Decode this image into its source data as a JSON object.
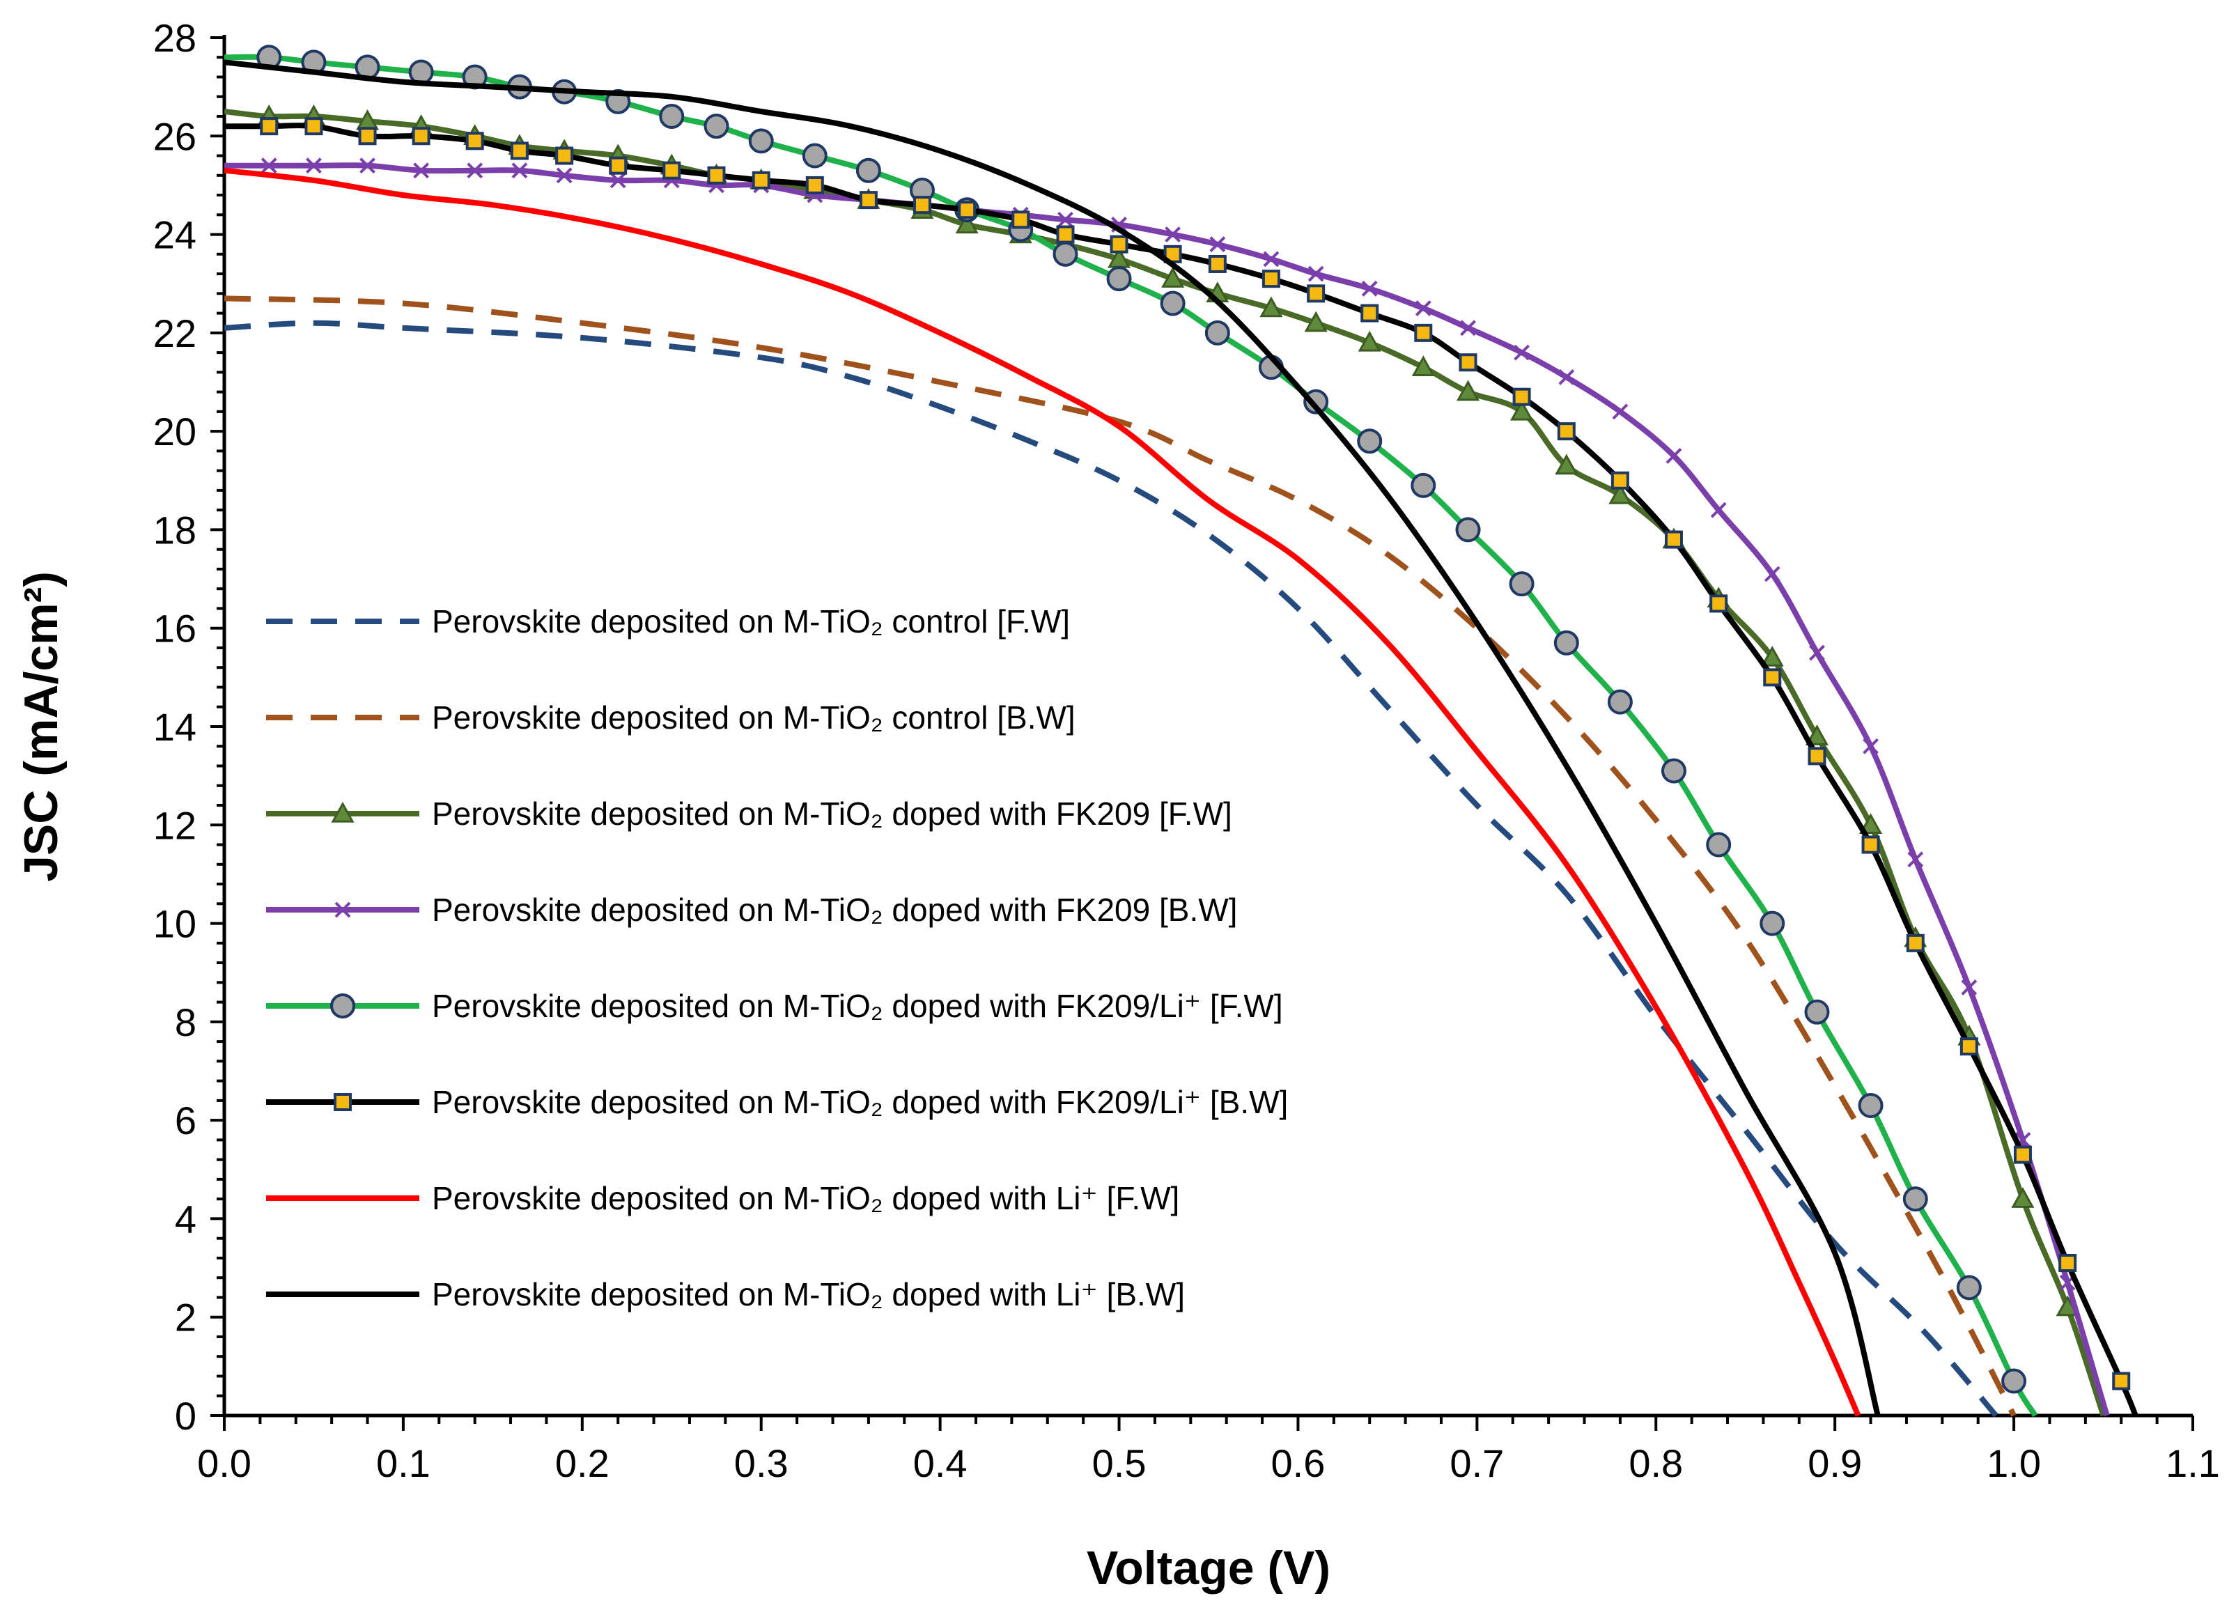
{
  "chart_data": {
    "type": "line",
    "title": "",
    "xlabel": "Voltage (V)",
    "ylabel": "JSC (mA/cm²)",
    "xlim": [
      0,
      1.1
    ],
    "ylim": [
      0,
      28
    ],
    "x_ticks": [
      0.0,
      0.1,
      0.2,
      0.3,
      0.4,
      0.5,
      0.6,
      0.7,
      0.8,
      0.9,
      1.0,
      1.1
    ],
    "x_tick_labels": [
      "0.0",
      "0.1",
      "0.2",
      "0.3",
      "0.4",
      "0.5",
      "0.6",
      "0.7",
      "0.8",
      "0.9",
      "1.0",
      "1.1"
    ],
    "y_ticks": [
      0,
      2,
      4,
      6,
      8,
      10,
      12,
      14,
      16,
      18,
      20,
      22,
      24,
      26,
      28
    ],
    "y_tick_labels": [
      "0",
      "2",
      "4",
      "6",
      "8",
      "10",
      "12",
      "14",
      "16",
      "18",
      "20",
      "22",
      "24",
      "26",
      "28"
    ],
    "grid": false,
    "legend_position": "left-center",
    "series": [
      {
        "name": "Perovskite deposited on M-TiO₂ control [F.W]",
        "color": "#254b7e",
        "dash": "dashed",
        "marker": "none",
        "points": [
          [
            0.0,
            22.1
          ],
          [
            0.05,
            22.2
          ],
          [
            0.1,
            22.1
          ],
          [
            0.2,
            21.9
          ],
          [
            0.3,
            21.5
          ],
          [
            0.35,
            21.1
          ],
          [
            0.4,
            20.5
          ],
          [
            0.45,
            19.8
          ],
          [
            0.5,
            19.0
          ],
          [
            0.55,
            17.9
          ],
          [
            0.6,
            16.4
          ],
          [
            0.65,
            14.4
          ],
          [
            0.7,
            12.4
          ],
          [
            0.75,
            10.6
          ],
          [
            0.8,
            8.1
          ],
          [
            0.85,
            5.8
          ],
          [
            0.9,
            3.5
          ],
          [
            0.95,
            1.7
          ],
          [
            0.99,
            0.0
          ]
        ]
      },
      {
        "name": "Perovskite deposited on M-TiO₂ control [B.W]",
        "color": "#a0521d",
        "dash": "dashed",
        "marker": "none",
        "points": [
          [
            0.0,
            22.7
          ],
          [
            0.1,
            22.6
          ],
          [
            0.2,
            22.2
          ],
          [
            0.3,
            21.7
          ],
          [
            0.4,
            21.0
          ],
          [
            0.5,
            20.2
          ],
          [
            0.55,
            19.4
          ],
          [
            0.6,
            18.6
          ],
          [
            0.65,
            17.5
          ],
          [
            0.7,
            16.0
          ],
          [
            0.75,
            14.2
          ],
          [
            0.8,
            12.1
          ],
          [
            0.85,
            9.7
          ],
          [
            0.9,
            6.7
          ],
          [
            0.95,
            3.5
          ],
          [
            0.975,
            1.8
          ],
          [
            1.0,
            0.0
          ]
        ]
      },
      {
        "name": "Perovskite deposited on M-TiO₂ doped with FK209 [F.W]",
        "color": "#4a6b28",
        "dash": "solid",
        "marker": "triangle",
        "points": [
          [
            0.0,
            26.5
          ],
          [
            0.025,
            26.4
          ],
          [
            0.05,
            26.4
          ],
          [
            0.08,
            26.3
          ],
          [
            0.11,
            26.2
          ],
          [
            0.14,
            26.0
          ],
          [
            0.165,
            25.8
          ],
          [
            0.19,
            25.7
          ],
          [
            0.22,
            25.6
          ],
          [
            0.25,
            25.4
          ],
          [
            0.275,
            25.2
          ],
          [
            0.3,
            25.1
          ],
          [
            0.33,
            24.9
          ],
          [
            0.36,
            24.7
          ],
          [
            0.39,
            24.5
          ],
          [
            0.415,
            24.2
          ],
          [
            0.445,
            24.0
          ],
          [
            0.47,
            23.8
          ],
          [
            0.5,
            23.5
          ],
          [
            0.53,
            23.1
          ],
          [
            0.555,
            22.8
          ],
          [
            0.585,
            22.5
          ],
          [
            0.61,
            22.2
          ],
          [
            0.64,
            21.8
          ],
          [
            0.67,
            21.3
          ],
          [
            0.695,
            20.8
          ],
          [
            0.725,
            20.4
          ],
          [
            0.75,
            19.3
          ],
          [
            0.78,
            18.7
          ],
          [
            0.81,
            17.8
          ],
          [
            0.835,
            16.6
          ],
          [
            0.865,
            15.4
          ],
          [
            0.89,
            13.8
          ],
          [
            0.92,
            12.0
          ],
          [
            0.945,
            9.7
          ],
          [
            0.975,
            7.7
          ],
          [
            1.005,
            4.4
          ],
          [
            1.03,
            2.2
          ],
          [
            1.05,
            0.0
          ]
        ]
      },
      {
        "name": "Perovskite deposited on M-TiO₂ doped with FK209 [B.W]",
        "color": "#7b3fab",
        "dash": "solid",
        "marker": "x",
        "points": [
          [
            0.0,
            25.4
          ],
          [
            0.025,
            25.4
          ],
          [
            0.05,
            25.4
          ],
          [
            0.08,
            25.4
          ],
          [
            0.11,
            25.3
          ],
          [
            0.14,
            25.3
          ],
          [
            0.165,
            25.3
          ],
          [
            0.19,
            25.2
          ],
          [
            0.22,
            25.1
          ],
          [
            0.25,
            25.1
          ],
          [
            0.275,
            25.0
          ],
          [
            0.3,
            25.0
          ],
          [
            0.33,
            24.8
          ],
          [
            0.36,
            24.7
          ],
          [
            0.39,
            24.6
          ],
          [
            0.415,
            24.5
          ],
          [
            0.445,
            24.4
          ],
          [
            0.47,
            24.3
          ],
          [
            0.5,
            24.2
          ],
          [
            0.53,
            24.0
          ],
          [
            0.555,
            23.8
          ],
          [
            0.585,
            23.5
          ],
          [
            0.61,
            23.2
          ],
          [
            0.64,
            22.9
          ],
          [
            0.67,
            22.5
          ],
          [
            0.695,
            22.1
          ],
          [
            0.725,
            21.6
          ],
          [
            0.75,
            21.1
          ],
          [
            0.78,
            20.4
          ],
          [
            0.81,
            19.5
          ],
          [
            0.835,
            18.4
          ],
          [
            0.865,
            17.1
          ],
          [
            0.89,
            15.5
          ],
          [
            0.92,
            13.6
          ],
          [
            0.945,
            11.3
          ],
          [
            0.975,
            8.7
          ],
          [
            1.005,
            5.6
          ],
          [
            1.03,
            2.7
          ],
          [
            1.052,
            0.0
          ]
        ]
      },
      {
        "name": "Perovskite deposited on M-TiO₂ doped with FK209/Li⁺ [F.W]",
        "color": "#1fb24a",
        "dash": "solid",
        "marker": "circle",
        "points": [
          [
            0.0,
            27.6
          ],
          [
            0.025,
            27.6
          ],
          [
            0.05,
            27.5
          ],
          [
            0.08,
            27.4
          ],
          [
            0.11,
            27.3
          ],
          [
            0.14,
            27.2
          ],
          [
            0.165,
            27.0
          ],
          [
            0.19,
            26.9
          ],
          [
            0.22,
            26.7
          ],
          [
            0.25,
            26.4
          ],
          [
            0.275,
            26.2
          ],
          [
            0.3,
            25.9
          ],
          [
            0.33,
            25.6
          ],
          [
            0.36,
            25.3
          ],
          [
            0.39,
            24.9
          ],
          [
            0.415,
            24.5
          ],
          [
            0.445,
            24.1
          ],
          [
            0.47,
            23.6
          ],
          [
            0.5,
            23.1
          ],
          [
            0.53,
            22.6
          ],
          [
            0.555,
            22.0
          ],
          [
            0.585,
            21.3
          ],
          [
            0.61,
            20.6
          ],
          [
            0.64,
            19.8
          ],
          [
            0.67,
            18.9
          ],
          [
            0.695,
            18.0
          ],
          [
            0.725,
            16.9
          ],
          [
            0.75,
            15.7
          ],
          [
            0.78,
            14.5
          ],
          [
            0.81,
            13.1
          ],
          [
            0.835,
            11.6
          ],
          [
            0.865,
            10.0
          ],
          [
            0.89,
            8.2
          ],
          [
            0.92,
            6.3
          ],
          [
            0.945,
            4.4
          ],
          [
            0.975,
            2.6
          ],
          [
            1.0,
            0.7
          ],
          [
            1.012,
            0.0
          ]
        ]
      },
      {
        "name": "Perovskite deposited on M-TiO₂ doped with FK209/Li⁺ [B.W]",
        "color": "#000000",
        "dash": "solid",
        "marker": "square",
        "points": [
          [
            0.0,
            26.2
          ],
          [
            0.025,
            26.2
          ],
          [
            0.05,
            26.2
          ],
          [
            0.08,
            26.0
          ],
          [
            0.11,
            26.0
          ],
          [
            0.14,
            25.9
          ],
          [
            0.165,
            25.7
          ],
          [
            0.19,
            25.6
          ],
          [
            0.22,
            25.4
          ],
          [
            0.25,
            25.3
          ],
          [
            0.275,
            25.2
          ],
          [
            0.3,
            25.1
          ],
          [
            0.33,
            25.0
          ],
          [
            0.36,
            24.7
          ],
          [
            0.39,
            24.6
          ],
          [
            0.415,
            24.5
          ],
          [
            0.445,
            24.3
          ],
          [
            0.47,
            24.0
          ],
          [
            0.5,
            23.8
          ],
          [
            0.53,
            23.6
          ],
          [
            0.555,
            23.4
          ],
          [
            0.585,
            23.1
          ],
          [
            0.61,
            22.8
          ],
          [
            0.64,
            22.4
          ],
          [
            0.67,
            22.0
          ],
          [
            0.695,
            21.4
          ],
          [
            0.725,
            20.7
          ],
          [
            0.75,
            20.0
          ],
          [
            0.78,
            19.0
          ],
          [
            0.81,
            17.8
          ],
          [
            0.835,
            16.5
          ],
          [
            0.865,
            15.0
          ],
          [
            0.89,
            13.4
          ],
          [
            0.92,
            11.6
          ],
          [
            0.945,
            9.6
          ],
          [
            0.975,
            7.5
          ],
          [
            1.005,
            5.3
          ],
          [
            1.03,
            3.1
          ],
          [
            1.06,
            0.7
          ],
          [
            1.068,
            0.0
          ]
        ]
      },
      {
        "name": "Perovskite deposited on M-TiO₂ doped with Li⁺ [F.W]",
        "color": "#ff0000",
        "dash": "solid",
        "marker": "none",
        "points": [
          [
            0.0,
            25.3
          ],
          [
            0.05,
            25.1
          ],
          [
            0.1,
            24.8
          ],
          [
            0.15,
            24.6
          ],
          [
            0.2,
            24.3
          ],
          [
            0.25,
            23.9
          ],
          [
            0.3,
            23.4
          ],
          [
            0.35,
            22.8
          ],
          [
            0.4,
            22.0
          ],
          [
            0.45,
            21.1
          ],
          [
            0.5,
            20.1
          ],
          [
            0.55,
            18.6
          ],
          [
            0.6,
            17.4
          ],
          [
            0.65,
            15.7
          ],
          [
            0.7,
            13.5
          ],
          [
            0.75,
            11.2
          ],
          [
            0.8,
            8.3
          ],
          [
            0.85,
            5.0
          ],
          [
            0.88,
            2.7
          ],
          [
            0.9,
            1.1
          ],
          [
            0.913,
            0.0
          ]
        ]
      },
      {
        "name": "Perovskite deposited on M-TiO₂ doped with Li⁺ [B.W]",
        "color": "#000000",
        "dash": "solid",
        "marker": "none",
        "points": [
          [
            0.0,
            27.5
          ],
          [
            0.05,
            27.3
          ],
          [
            0.1,
            27.1
          ],
          [
            0.15,
            27.0
          ],
          [
            0.2,
            26.9
          ],
          [
            0.25,
            26.8
          ],
          [
            0.3,
            26.5
          ],
          [
            0.35,
            26.2
          ],
          [
            0.4,
            25.7
          ],
          [
            0.45,
            25.0
          ],
          [
            0.5,
            24.1
          ],
          [
            0.55,
            22.8
          ],
          [
            0.6,
            20.9
          ],
          [
            0.65,
            18.7
          ],
          [
            0.7,
            16.1
          ],
          [
            0.75,
            13.2
          ],
          [
            0.8,
            10.0
          ],
          [
            0.85,
            6.6
          ],
          [
            0.9,
            3.3
          ],
          [
            0.924,
            0.0
          ]
        ]
      }
    ]
  }
}
